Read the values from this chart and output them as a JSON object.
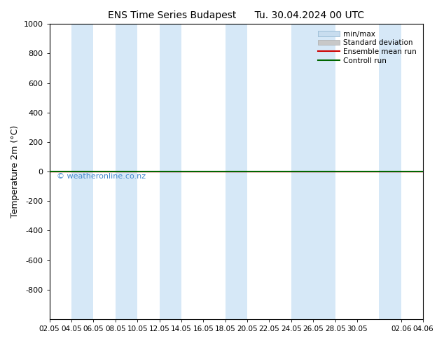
{
  "title_left": "ENS Time Series Budapest",
  "title_right": "Tu. 30.04.2024 00 UTC",
  "ylabel": "Temperature 2m (°C)",
  "ylim_bottom": -1000,
  "ylim_top": 1000,
  "yticks": [
    -800,
    -600,
    -400,
    -200,
    0,
    200,
    400,
    600,
    800,
    1000
  ],
  "x_start": 0,
  "x_end": 34,
  "x_tick_labels": [
    "02.05",
    "04.05",
    "06.05",
    "08.05",
    "10.05",
    "12.05",
    "14.05",
    "16.05",
    "18.05",
    "20.05",
    "22.05",
    "24.05",
    "26.05",
    "28.05",
    "30.05",
    "02.06",
    "04.06"
  ],
  "x_tick_positions": [
    0,
    2,
    4,
    6,
    8,
    10,
    12,
    14,
    16,
    18,
    20,
    22,
    24,
    26,
    28,
    32,
    34
  ],
  "band_color": "#d6e8f7",
  "band_positions": [
    [
      2,
      4
    ],
    [
      6,
      8
    ],
    [
      10,
      12
    ],
    [
      16,
      18
    ],
    [
      22,
      24
    ],
    [
      24,
      26
    ],
    [
      30,
      32
    ]
  ],
  "control_run_y": 0,
  "control_run_color": "#006600",
  "ensemble_mean_color": "#cc0000",
  "watermark": "© weatheronline.co.nz",
  "watermark_color": "#4488cc",
  "background_color": "#ffffff",
  "plot_bg_color": "#ffffff",
  "border_color": "#000000",
  "legend_entries": [
    "min/max",
    "Standard deviation",
    "Ensemble mean run",
    "Controll run"
  ],
  "legend_colors": [
    "#c8ddef",
    "#c8c8c8",
    "#cc0000",
    "#006600"
  ]
}
